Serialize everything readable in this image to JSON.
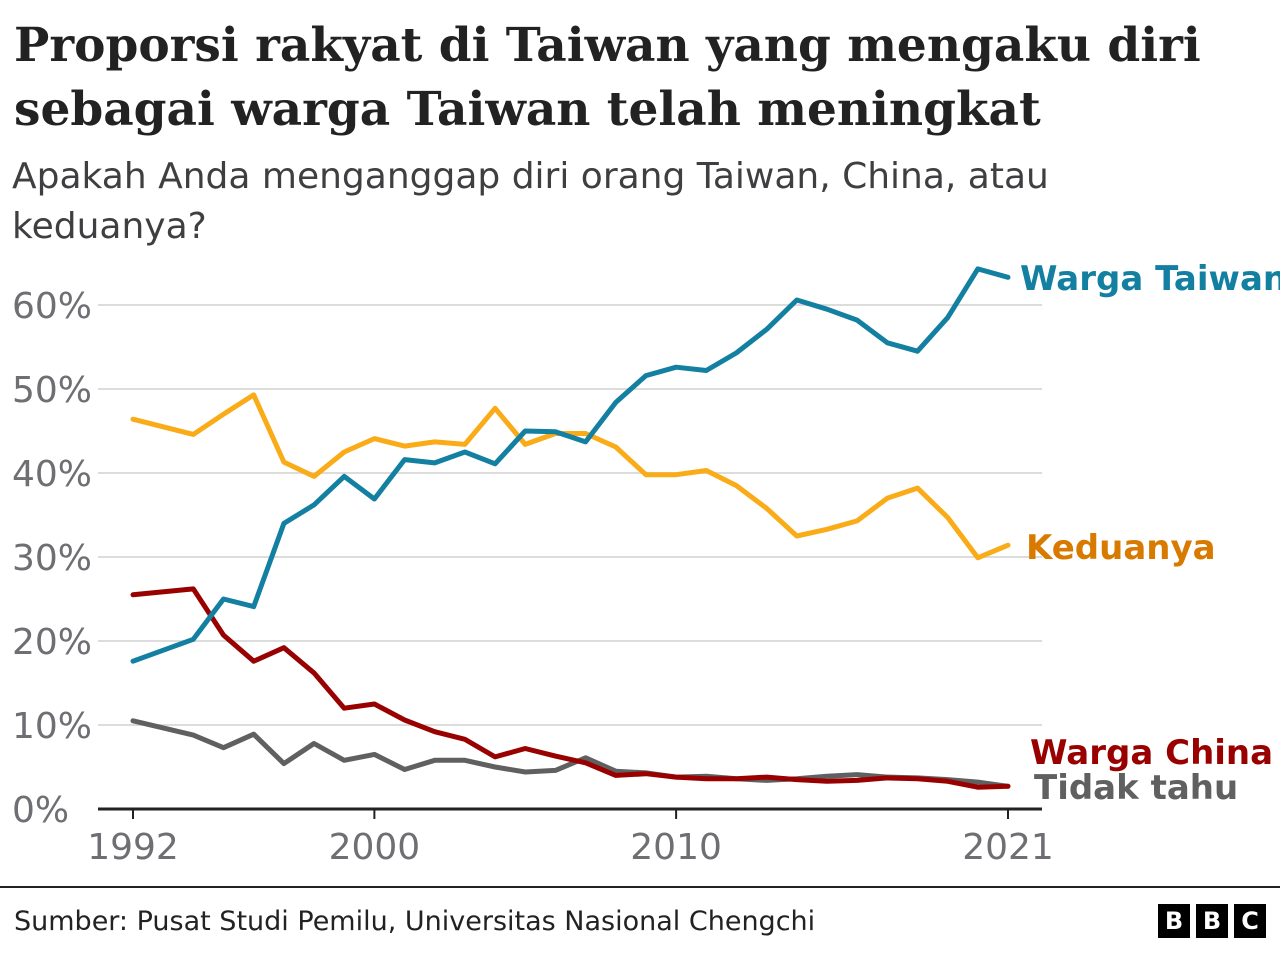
{
  "title": "Proporsi rakyat di Taiwan yang mengaku diri sebagai warga Taiwan telah meningkat",
  "subtitle": "Apakah Anda menganggap diri orang Taiwan, China, atau keduanya?",
  "source": "Sumber: Pusat Studi Pemilu, Universitas Nasional Chengchi",
  "logo": [
    "B",
    "B",
    "C"
  ],
  "chart_data": {
    "type": "line",
    "x": [
      1992,
      1994,
      1995,
      1996,
      1997,
      1998,
      1999,
      2000,
      2001,
      2002,
      2003,
      2004,
      2005,
      2006,
      2007,
      2008,
      2009,
      2010,
      2011,
      2012,
      2013,
      2014,
      2015,
      2016,
      2017,
      2018,
      2019,
      2020,
      2021
    ],
    "xticks": [
      "1992",
      "2000",
      "2010",
      "2021"
    ],
    "xlim": [
      1992,
      2021
    ],
    "yticks": [
      "0%",
      "10%",
      "20%",
      "30%",
      "40%",
      "50%",
      "60%"
    ],
    "ylim": [
      0,
      65
    ],
    "grid": true,
    "series": [
      {
        "name": "Warga Taiwan",
        "color": "#1380A1",
        "label_color": "#1380A1",
        "values": [
          17.6,
          20.2,
          25.0,
          24.1,
          34.0,
          36.2,
          39.6,
          36.9,
          41.6,
          41.2,
          42.5,
          41.1,
          45.0,
          44.9,
          43.7,
          48.4,
          51.6,
          52.6,
          52.2,
          54.3,
          57.1,
          60.6,
          59.5,
          58.2,
          55.5,
          54.5,
          58.5,
          64.3,
          63.3
        ]
      },
      {
        "name": "Keduanya",
        "color": "#FAAB18",
        "label_color": "#D97A00",
        "values": [
          46.4,
          44.6,
          47.0,
          49.3,
          41.3,
          39.6,
          42.5,
          44.1,
          43.2,
          43.7,
          43.4,
          47.7,
          43.4,
          44.7,
          44.7,
          43.1,
          39.8,
          39.8,
          40.3,
          38.5,
          35.8,
          32.5,
          33.3,
          34.3,
          37.0,
          38.2,
          34.7,
          29.9,
          31.4
        ]
      },
      {
        "name": "Warga China",
        "color": "#990000",
        "label_color": "#990000",
        "values": [
          25.5,
          26.2,
          20.7,
          17.6,
          19.2,
          16.2,
          12.0,
          12.5,
          10.6,
          9.2,
          8.3,
          6.2,
          7.2,
          6.3,
          5.5,
          4.0,
          4.2,
          3.8,
          3.6,
          3.6,
          3.8,
          3.5,
          3.3,
          3.4,
          3.7,
          3.6,
          3.3,
          2.6,
          2.7
        ]
      },
      {
        "name": "Tidak tahu",
        "color": "#606060",
        "label_color": "#606060",
        "values": [
          10.5,
          8.8,
          7.3,
          8.9,
          5.4,
          7.8,
          5.8,
          6.5,
          4.7,
          5.8,
          5.8,
          5.0,
          4.4,
          4.6,
          6.1,
          4.5,
          4.3,
          3.8,
          3.9,
          3.6,
          3.4,
          3.6,
          3.9,
          4.1,
          3.8,
          3.7,
          3.5,
          3.2,
          2.7
        ]
      }
    ]
  }
}
